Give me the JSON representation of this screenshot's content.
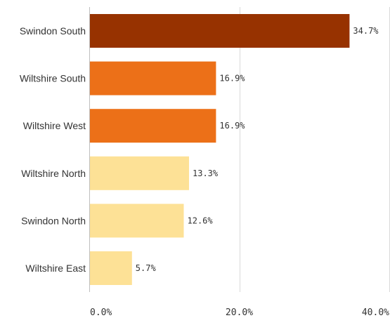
{
  "chart_data": {
    "type": "bar",
    "orientation": "horizontal",
    "categories": [
      "Swindon South",
      "Wiltshire South",
      "Wiltshire West",
      "Wiltshire North",
      "Swindon North",
      "Wiltshire East"
    ],
    "values": [
      34.7,
      16.9,
      16.9,
      13.3,
      12.6,
      5.7
    ],
    "value_labels": [
      "34.7%",
      "16.9%",
      "16.9%",
      "13.3%",
      "12.6%",
      "5.7%"
    ],
    "bar_colors": [
      "#973200",
      "#ec7018",
      "#ec7018",
      "#fde196",
      "#fde196",
      "#fde196"
    ],
    "xlim": [
      0,
      40
    ],
    "xticks": [
      0,
      20,
      40
    ],
    "xtick_labels": [
      "0.0%",
      "20.0%",
      "40.0%"
    ],
    "grid": true,
    "title": "",
    "xlabel": "",
    "ylabel": ""
  }
}
